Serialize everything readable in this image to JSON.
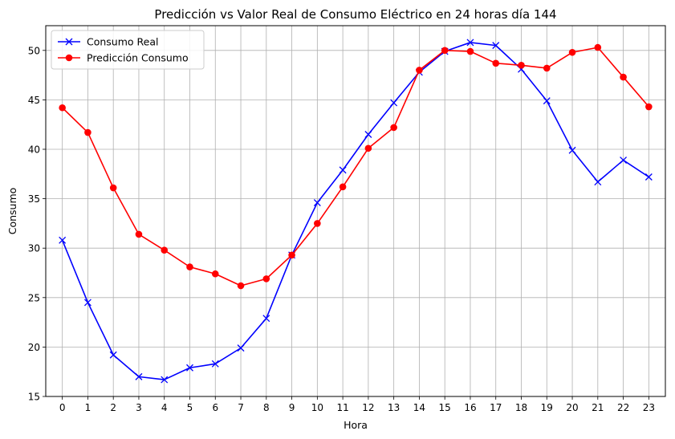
{
  "chart_data": {
    "type": "line",
    "title": "Predicción vs Valor Real de Consumo Eléctrico en 24 horas día 144",
    "xlabel": "Hora",
    "ylabel": "Consumo",
    "x": [
      0,
      1,
      2,
      3,
      4,
      5,
      6,
      7,
      8,
      9,
      10,
      11,
      12,
      13,
      14,
      15,
      16,
      17,
      18,
      19,
      20,
      21,
      22,
      23
    ],
    "xlim": [
      -0.65,
      23.65
    ],
    "ylim": [
      15,
      52.5
    ],
    "yticks": [
      15,
      20,
      25,
      30,
      35,
      40,
      45,
      50
    ],
    "grid": true,
    "legend_position": "top-left",
    "series": [
      {
        "name": "Consumo Real",
        "color": "#0000ff",
        "marker": "x",
        "values": [
          30.8,
          24.5,
          19.2,
          17.0,
          16.7,
          17.9,
          18.3,
          19.9,
          22.9,
          29.3,
          34.6,
          37.9,
          41.5,
          44.7,
          47.8,
          49.9,
          50.8,
          50.5,
          48.1,
          44.9,
          39.9,
          36.7,
          38.9,
          37.2
        ]
      },
      {
        "name": "Predicción Consumo",
        "color": "#ff0000",
        "marker": "o",
        "values": [
          44.2,
          41.7,
          36.1,
          31.4,
          29.8,
          28.1,
          27.4,
          26.2,
          26.9,
          29.3,
          32.5,
          36.2,
          40.1,
          42.2,
          48.0,
          50.0,
          49.9,
          48.7,
          48.5,
          48.2,
          49.8,
          50.3,
          47.3,
          44.3
        ]
      }
    ]
  }
}
